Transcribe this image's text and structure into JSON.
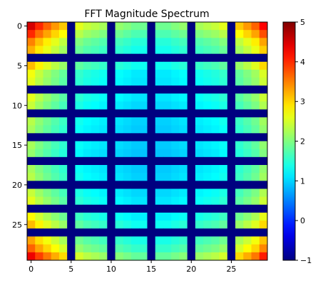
{
  "chart_data": {
    "type": "heatmap",
    "title": "FFT Magnitude Spectrum",
    "xlabel": "",
    "ylabel": "",
    "rows": 30,
    "cols": 30,
    "colormap": "jet",
    "vmin": -1,
    "vmax": 5,
    "x_ticks": [
      0,
      5,
      10,
      15,
      20,
      25
    ],
    "y_ticks": [
      0,
      5,
      10,
      15,
      20,
      25
    ],
    "colorbar_ticks": [
      -1,
      0,
      1,
      2,
      3,
      4,
      5
    ],
    "grid": false,
    "dark_rows": [
      4,
      8,
      11,
      14,
      17,
      20,
      23,
      26
    ],
    "dark_cols": [
      5,
      10,
      15,
      20,
      25
    ],
    "row_levels": [
      4.5,
      3.6,
      2.7,
      2.3,
      -1,
      2.2,
      1.6,
      1.5,
      -1,
      1.5,
      1.3,
      -1,
      1.2,
      1.1,
      -1,
      1.1,
      1.0,
      -1,
      1.1,
      1.2,
      -1,
      1.3,
      1.5,
      -1,
      1.7,
      2.2,
      -1,
      2.4,
      3.0,
      4.2
    ],
    "col_levels": [
      4.5,
      3.6,
      3.0,
      2.5,
      2.1,
      -1,
      1.5,
      1.3,
      1.2,
      1.1,
      -1,
      1.0,
      0.9,
      0.8,
      0.8,
      -1,
      0.8,
      0.8,
      0.9,
      1.0,
      -1,
      1.1,
      1.2,
      1.3,
      1.5,
      -1,
      2.1,
      2.5,
      3.0,
      4.0
    ]
  }
}
